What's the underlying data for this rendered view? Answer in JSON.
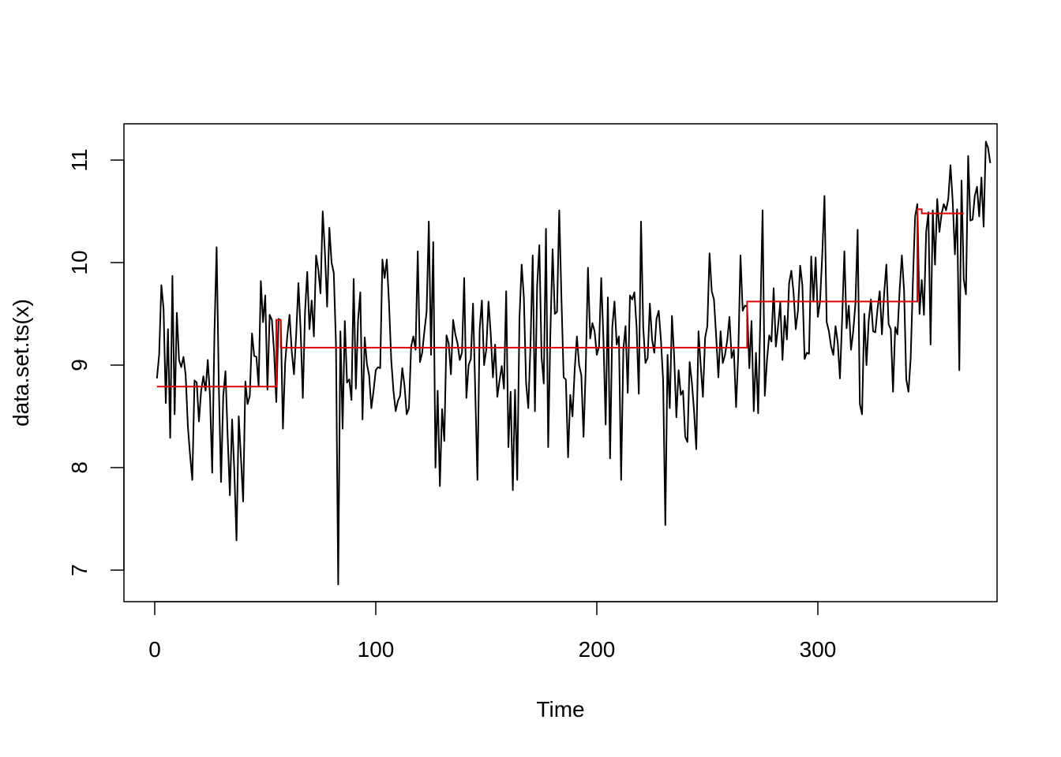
{
  "chart_data": {
    "type": "line",
    "title": "",
    "xlabel": "Time",
    "ylabel": "data.set.ts(x)",
    "xlim": [
      0,
      366
    ],
    "ylim": [
      6.85,
      11.2
    ],
    "x_ticks": [
      0,
      100,
      200,
      300
    ],
    "x_tick_labels": [
      "0",
      "100",
      "200",
      "300"
    ],
    "y_ticks": [
      7,
      8,
      9,
      10,
      11
    ],
    "y_tick_labels": [
      "7",
      "8",
      "9",
      "10",
      "11"
    ],
    "grid": false,
    "legend": "none",
    "series": [
      {
        "color": "#000000",
        "x_start": 1,
        "x_step": 1,
        "values": [
          8.87,
          9.1,
          9.78,
          9.55,
          8.63,
          9.35,
          8.29,
          9.87,
          8.52,
          9.51,
          9.05,
          8.98,
          9.08,
          8.9,
          8.4,
          8.12,
          7.88,
          8.85,
          8.83,
          8.45,
          8.75,
          8.89,
          8.75,
          9.05,
          8.7,
          7.95,
          9.3,
          10.15,
          8.8,
          7.86,
          8.7,
          8.94,
          8.3,
          7.73,
          8.47,
          7.97,
          7.29,
          8.5,
          8.1,
          7.67,
          8.84,
          8.62,
          8.7,
          9.31,
          9.09,
          9.08,
          8.79,
          9.82,
          9.42,
          9.68,
          8.76,
          9.49,
          9.44,
          9.13,
          8.64,
          9.45,
          9.44,
          8.38,
          9.02,
          9.29,
          9.49,
          9.13,
          8.91,
          9.3,
          9.8,
          9.34,
          8.68,
          9.52,
          9.91,
          9.35,
          9.63,
          9.28,
          10.07,
          9.93,
          9.7,
          10.5,
          10.1,
          9.57,
          10.34,
          10.0,
          9.9,
          9.2,
          6.86,
          9.33,
          8.38,
          9.43,
          8.83,
          8.86,
          8.66,
          9.84,
          8.77,
          9.44,
          9.71,
          8.47,
          9.27,
          9.01,
          8.9,
          8.58,
          8.75,
          8.95,
          8.98,
          8.97,
          10.03,
          9.85,
          10.03,
          9.6,
          9.05,
          8.75,
          8.55,
          8.65,
          8.7,
          8.97,
          8.8,
          8.52,
          8.58,
          9.18,
          9.28,
          9.15,
          10.11,
          9.03,
          9.12,
          9.33,
          9.52,
          10.4,
          9.1,
          10.2,
          8.0,
          8.75,
          7.82,
          8.57,
          8.26,
          9.29,
          9.21,
          8.91,
          9.44,
          9.3,
          9.21,
          9.05,
          9.12,
          9.85,
          8.68,
          9.0,
          9.06,
          9.6,
          8.75,
          7.88,
          9.35,
          9.63,
          9.0,
          9.15,
          9.62,
          9.31,
          8.88,
          9.2,
          8.69,
          8.85,
          8.99,
          8.77,
          9.72,
          8.2,
          8.74,
          7.78,
          8.76,
          7.88,
          9.45,
          9.98,
          9.66,
          8.83,
          8.58,
          9.2,
          10.07,
          8.55,
          9.77,
          10.17,
          9.08,
          8.82,
          10.33,
          8.2,
          9.32,
          10.13,
          9.5,
          9.52,
          10.51,
          9.65,
          8.88,
          8.86,
          8.1,
          8.71,
          8.5,
          8.96,
          9.28,
          9.0,
          8.9,
          8.3,
          8.98,
          9.95,
          9.26,
          9.41,
          9.33,
          9.1,
          9.18,
          9.85,
          9.25,
          8.42,
          9.66,
          8.09,
          9.37,
          9.62,
          9.2,
          9.28,
          7.88,
          9.15,
          9.38,
          8.73,
          9.68,
          9.64,
          9.71,
          9.37,
          8.72,
          10.4,
          9.37,
          9.02,
          9.07,
          9.6,
          9.25,
          9.12,
          9.45,
          9.53,
          9.25,
          8.85,
          7.44,
          9.1,
          8.58,
          9.48,
          9.08,
          8.49,
          8.95,
          8.71,
          8.75,
          8.3,
          8.25,
          9.03,
          8.83,
          8.55,
          8.18,
          9.33,
          9.0,
          8.69,
          9.27,
          9.38,
          10.09,
          9.72,
          9.64,
          9.28,
          8.88,
          9.33,
          9.02,
          9.1,
          9.24,
          9.47,
          9.07,
          9.15,
          8.59,
          9.11,
          10.07,
          9.53,
          9.58,
          9.57,
          8.97,
          9.43,
          8.55,
          9.12,
          8.53,
          9.48,
          10.51,
          8.7,
          9.05,
          9.29,
          9.23,
          9.75,
          9.18,
          9.38,
          9.61,
          9.05,
          9.48,
          9.25,
          9.8,
          9.92,
          9.71,
          9.35,
          9.53,
          9.97,
          9.78,
          9.06,
          9.12,
          9.11,
          10.06,
          9.62,
          10.05,
          9.47,
          9.62,
          10.08,
          10.65,
          9.42,
          9.33,
          9.18,
          9.1,
          9.38,
          9.22,
          8.87,
          9.46,
          10.11,
          9.36,
          9.58,
          9.15,
          9.33,
          9.6,
          10.32,
          8.62,
          8.52,
          9.5,
          9.0,
          9.43,
          9.64,
          9.33,
          9.32,
          9.55,
          9.72,
          9.3,
          9.7,
          9.98,
          9.4,
          9.35,
          8.74,
          9.37,
          9.3,
          9.73,
          10.07,
          9.73,
          8.86,
          8.74,
          9.07,
          9.82,
          10.45,
          10.57,
          9.5,
          9.83,
          9.49,
          10.3,
          10.49,
          9.2,
          10.51,
          9.98,
          10.62,
          10.3,
          10.48,
          10.57,
          10.51,
          10.62,
          10.95,
          10.6,
          10.08,
          10.52,
          8.95,
          10.8,
          9.84,
          9.69,
          11.04,
          10.41,
          10.42,
          10.65,
          10.74,
          10.45,
          10.83,
          10.35,
          11.18,
          11.12,
          10.97
        ]
      },
      {
        "color": "#dd0000",
        "steps": [
          {
            "x_from": 1,
            "x_to": 55,
            "y": 8.79
          },
          {
            "x_from": 55,
            "x_to": 57,
            "y": 9.44
          },
          {
            "x_from": 57,
            "x_to": 268,
            "y": 9.17
          },
          {
            "x_from": 268,
            "x_to": 345,
            "y": 9.62
          },
          {
            "x_from": 345,
            "x_to": 347,
            "y": 10.52
          },
          {
            "x_from": 347,
            "x_to": 366,
            "y": 10.48
          }
        ]
      }
    ]
  }
}
